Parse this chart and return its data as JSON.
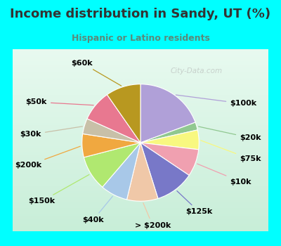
{
  "title": "Income distribution in Sandy, UT (%)",
  "subtitle": "Hispanic or Latino residents",
  "title_color": "#333333",
  "subtitle_color": "#5a8a7a",
  "bg_cyan": "#00ffff",
  "bg_chart_top": "#e8faf0",
  "bg_chart_bottom": "#c8eed8",
  "watermark": "City-Data.com",
  "slices": [
    {
      "label": "$100k",
      "value": 18,
      "color": "#b0a0d8"
    },
    {
      "label": "$20k",
      "value": 2,
      "color": "#90c890"
    },
    {
      "label": "$75k",
      "value": 5,
      "color": "#f8f880"
    },
    {
      "label": "$10k",
      "value": 7,
      "color": "#f0a0b0"
    },
    {
      "label": "$125k",
      "value": 10,
      "color": "#7878c8"
    },
    {
      "label": "> $200k",
      "value": 8,
      "color": "#f0c8a8"
    },
    {
      "label": "$40k",
      "value": 7,
      "color": "#a8c8e8"
    },
    {
      "label": "$150k",
      "value": 9,
      "color": "#b0e870"
    },
    {
      "label": "$200k",
      "value": 6,
      "color": "#f0a840"
    },
    {
      "label": "$30k",
      "value": 4,
      "color": "#c8c0a8"
    },
    {
      "label": "$50k",
      "value": 8,
      "color": "#e87890"
    },
    {
      "label": "$60k",
      "value": 9,
      "color": "#b89820"
    }
  ],
  "label_fontsize": 8,
  "label_fontweight": "bold",
  "label_color": "#000000",
  "title_fontsize": 13,
  "subtitle_fontsize": 9
}
